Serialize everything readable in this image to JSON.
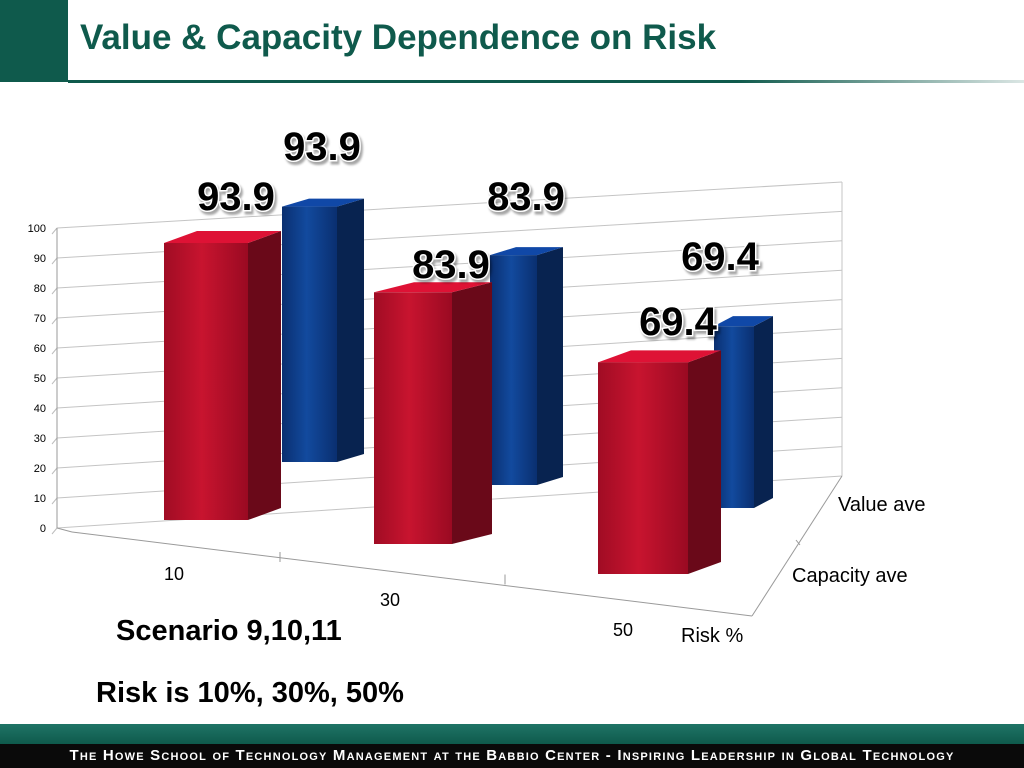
{
  "slide": {
    "title": "Value & Capacity Dependence on Risk",
    "caption_scenario": "Scenario 9,10,11",
    "caption_risk": "Risk is 10%, 30%, 50%",
    "footer": "The Howe School of Technology Management at the Babbio Center - Inspiring Leadership in Global Technology"
  },
  "colors": {
    "brand_green": "#0f5a4c",
    "value_series": "#0e3f91",
    "capacity_series": "#c1102e"
  },
  "chart_data": {
    "type": "bar",
    "variant": "3d-column",
    "categories": [
      "10",
      "30",
      "50"
    ],
    "series": [
      {
        "name": "Value ave",
        "values": [
          93.9,
          83.9,
          69.4
        ],
        "color": "#0e3f91"
      },
      {
        "name": "Capacity ave",
        "values": [
          93.9,
          83.9,
          69.4
        ],
        "color": "#c1102e"
      }
    ],
    "ylim": [
      0,
      100
    ],
    "yticks": [
      "0",
      "10",
      "20",
      "30",
      "40",
      "50",
      "60",
      "70",
      "80",
      "90",
      "100"
    ],
    "xlabel": "Risk %",
    "grid": true,
    "data_labels": true
  }
}
